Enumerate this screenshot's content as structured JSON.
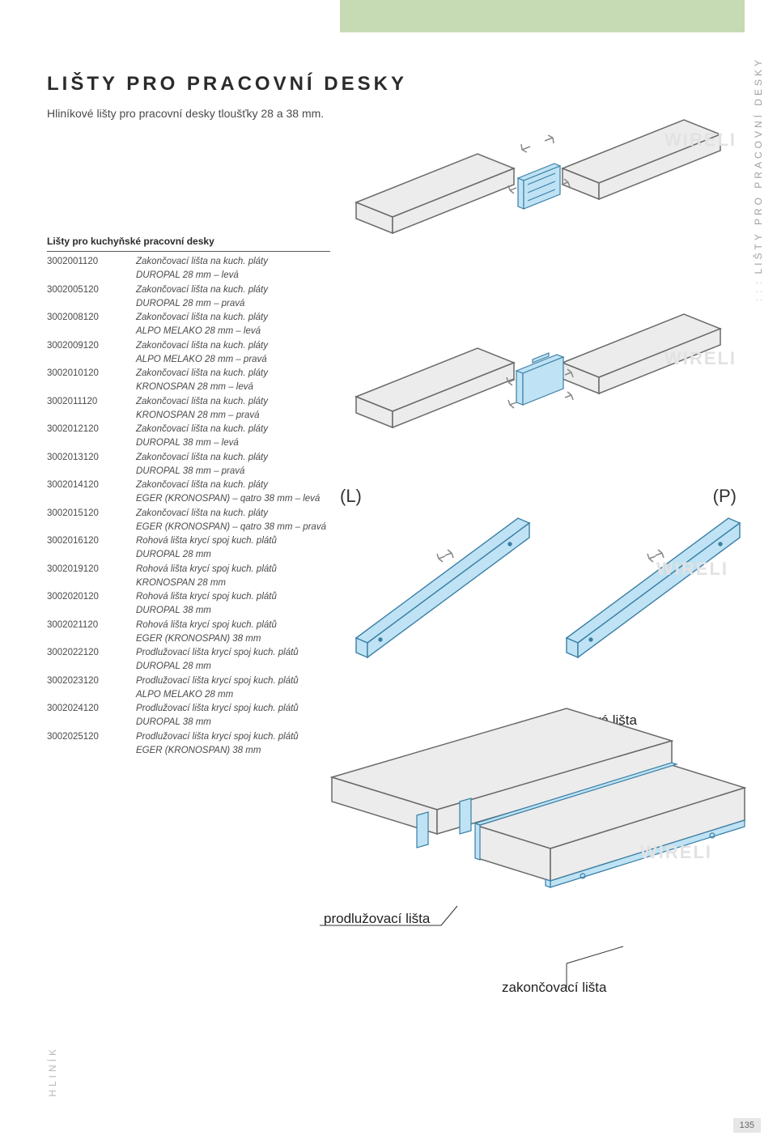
{
  "title": "LIŠTY PRO PRACOVNÍ DESKY",
  "subtitle": "Hliníkové lišty pro pracovní desky tloušťky 28 a 38  mm.",
  "section_head": "Lišty pro kuchyňské pracovní desky",
  "rows": [
    {
      "code": "3002001120",
      "l1": "Zakončovací lišta na kuch. pláty",
      "l2": "DUROPAL 28 mm – levá"
    },
    {
      "code": "3002005120",
      "l1": "Zakončovací lišta na kuch. pláty",
      "l2": "DUROPAL 28 mm – pravá"
    },
    {
      "code": "3002008120",
      "l1": "Zakončovací lišta na kuch. pláty",
      "l2": "ALPO MELAKO 28 mm – levá"
    },
    {
      "code": "3002009120",
      "l1": "Zakončovací lišta na kuch. pláty",
      "l2": "ALPO MELAKO 28 mm – pravá"
    },
    {
      "code": "3002010120",
      "l1": "Zakončovací lišta na kuch. pláty",
      "l2": "KRONOSPAN 28 mm – levá"
    },
    {
      "code": "3002011120",
      "l1": "Zakončovací lišta na kuch. pláty",
      "l2": "KRONOSPAN 28 mm – pravá"
    },
    {
      "code": "3002012120",
      "l1": "Zakončovací lišta na kuch. pláty",
      "l2": "DUROPAL 38 mm – levá"
    },
    {
      "code": "3002013120",
      "l1": "Zakončovací lišta na kuch. pláty",
      "l2": "DUROPAL 38 mm – pravá"
    },
    {
      "code": "3002014120",
      "l1": "Zakončovací lišta na kuch. pláty",
      "l2": "EGER (KRONOSPAN) – qatro 38 mm – levá"
    },
    {
      "code": "3002015120",
      "l1": "Zakončovací lišta na kuch. pláty",
      "l2": "EGER (KRONOSPAN) – qatro 38 mm – pravá"
    },
    {
      "code": "3002016120",
      "l1": "Rohová lišta krycí spoj kuch. plátů",
      "l2": "DUROPAL 28 mm"
    },
    {
      "code": "3002019120",
      "l1": "Rohová lišta krycí spoj kuch. plátů",
      "l2": "KRONOSPAN 28 mm"
    },
    {
      "code": "3002020120",
      "l1": "Rohová lišta krycí spoj kuch. plátů",
      "l2": "DUROPAL 38 mm"
    },
    {
      "code": "3002021120",
      "l1": "Rohová lišta krycí spoj kuch. plátů",
      "l2": "EGER (KRONOSPAN) 38 mm"
    },
    {
      "code": "3002022120",
      "l1": "Prodlužovací lišta krycí spoj kuch. plátů",
      "l2": "DUROPAL 28 mm"
    },
    {
      "code": "3002023120",
      "l1": "Prodlužovací lišta krycí spoj kuch. plátů",
      "l2": "ALPO MELAKO 28 mm"
    },
    {
      "code": "3002024120",
      "l1": "Prodlužovací lišta krycí spoj kuch. plátů",
      "l2": "DUROPAL 38 mm"
    },
    {
      "code": "3002025120",
      "l1": "Prodlužovací lišta krycí spoj kuch. plátů",
      "l2": "EGER (KRONOSPAN) 38 mm"
    }
  ],
  "lp": {
    "L": "(L)",
    "P": "(P)"
  },
  "callouts": {
    "rohova": "rohová lišta",
    "prodluzovaci": "prodlužovací lišta",
    "zakoncovaci": "zakončovací lišta"
  },
  "watermark": "WIRELI",
  "side_text": "LIŠTY PRO PRACOVNÍ DESKY",
  "footer_material": "HLINÍK",
  "page_number": "135",
  "colors": {
    "slab_fill": "#ececec",
    "slab_stroke": "#6a6a6a",
    "strip_fill": "#bfe3f4",
    "strip_stroke": "#3a7fa6",
    "arrow": "#888888",
    "band": "#c6dbb4"
  }
}
